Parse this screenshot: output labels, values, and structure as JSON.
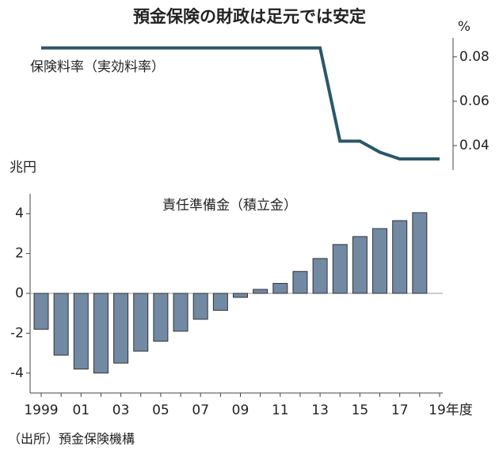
{
  "title": "預金保険の財政は足元では安定",
  "source": "（出所）預金保険機構",
  "chart_data": [
    {
      "type": "line",
      "label": "保険料率（実効料率）",
      "y_unit": "%",
      "color": "#2b5868",
      "values": [
        0.084,
        0.084,
        0.084,
        0.084,
        0.084,
        0.084,
        0.084,
        0.084,
        0.084,
        0.084,
        0.084,
        0.084,
        0.084,
        0.084,
        0.084,
        0.042,
        0.042,
        0.037,
        0.034,
        0.034,
        0.034
      ],
      "ylim": [
        0.029,
        0.0885
      ],
      "yticks": [
        0.04,
        0.06,
        0.08
      ]
    },
    {
      "type": "bar",
      "label": "責任準備金（積立金）",
      "y_unit": "兆円",
      "color": "#7189a3",
      "categories": [
        "1999",
        null,
        "01",
        null,
        "03",
        null,
        "05",
        null,
        "07",
        null,
        "09",
        null,
        "11",
        null,
        "13",
        null,
        "15",
        null,
        "17",
        null,
        "19年度"
      ],
      "values": [
        -1.8,
        -3.1,
        -3.8,
        -4.0,
        -3.5,
        -2.9,
        -2.4,
        -1.9,
        -1.3,
        -0.85,
        -0.2,
        0.2,
        0.5,
        1.1,
        1.75,
        2.45,
        2.85,
        3.25,
        3.65,
        4.05,
        null
      ],
      "ylim": [
        -5,
        5
      ],
      "yticks": [
        -4,
        -2,
        0,
        2,
        4
      ]
    }
  ]
}
